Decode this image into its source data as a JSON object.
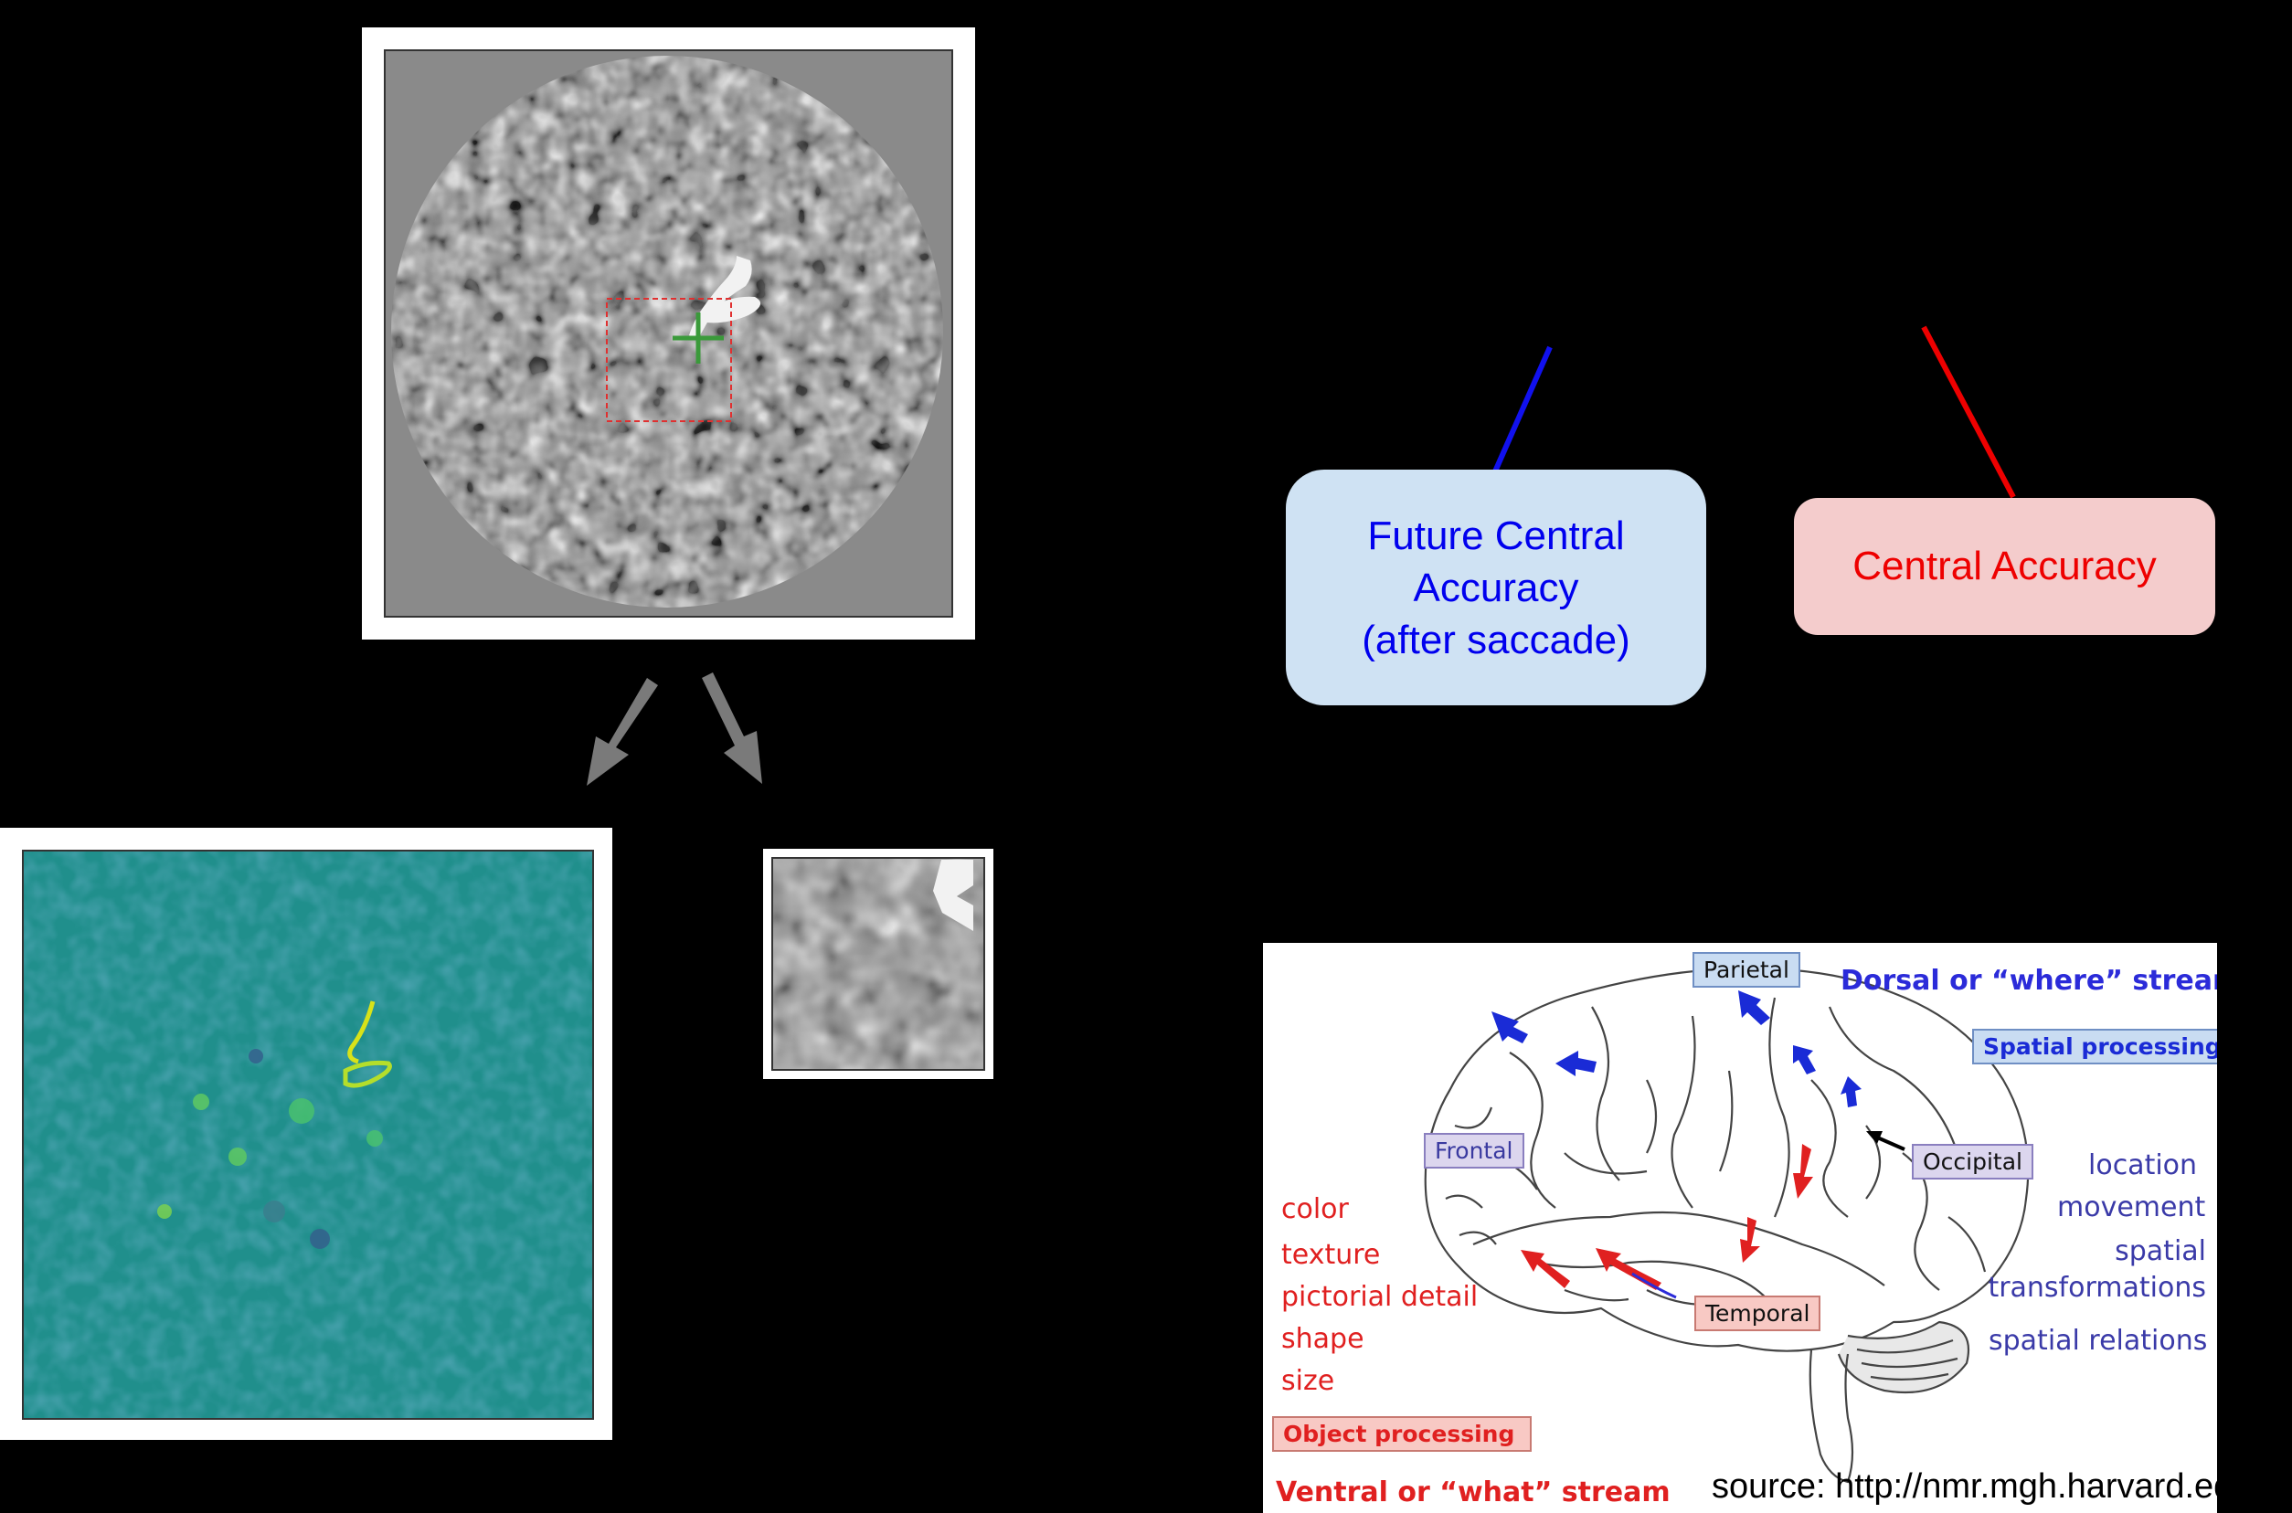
{
  "boxes": {
    "future_central": "Future Central\nAccuracy\n(after saccade)",
    "central": "Central Accuracy"
  },
  "brain": {
    "regions": {
      "parietal": "Parietal",
      "frontal": "Frontal",
      "occipital": "Occipital",
      "temporal": "Temporal"
    },
    "dorsal": {
      "title": "Dorsal or “where” stream",
      "tag": "Spatial processing",
      "features": [
        "location",
        "movement",
        "spatial\ntransformations",
        "spatial relations"
      ]
    },
    "ventral": {
      "title": "Ventral or “what” stream",
      "tag": "Object processing",
      "features": [
        "color",
        "texture",
        "pictorial detail",
        "shape",
        "size"
      ]
    }
  },
  "source": "source: http://nmr.mgh.harvard.edu",
  "colors": {
    "blue_text": "#0000ee",
    "red_text": "#ee0000",
    "blue_box": "#cfe2f3",
    "red_box": "#f4cccc",
    "dorsal": "#2b2bd9",
    "ventral": "#e8232b"
  },
  "icons": {
    "fixation": "green-plus-icon",
    "arrows": "gray-down-arrow-icon"
  }
}
